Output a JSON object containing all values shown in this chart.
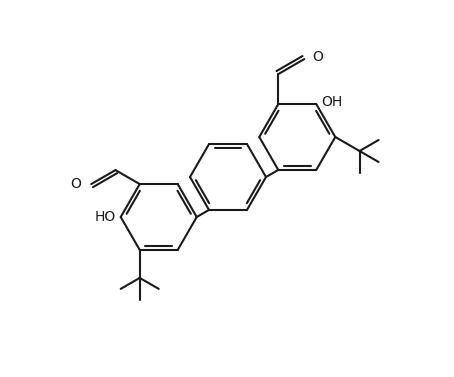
{
  "background_color": "#ffffff",
  "line_color": "#1a1a1a",
  "lw": 1.5,
  "text_color": "#1a1a1a",
  "figwidth": 4.54,
  "figheight": 3.77,
  "dpi": 100,
  "xlim": [
    0,
    454
  ],
  "ylim": [
    0,
    377
  ]
}
